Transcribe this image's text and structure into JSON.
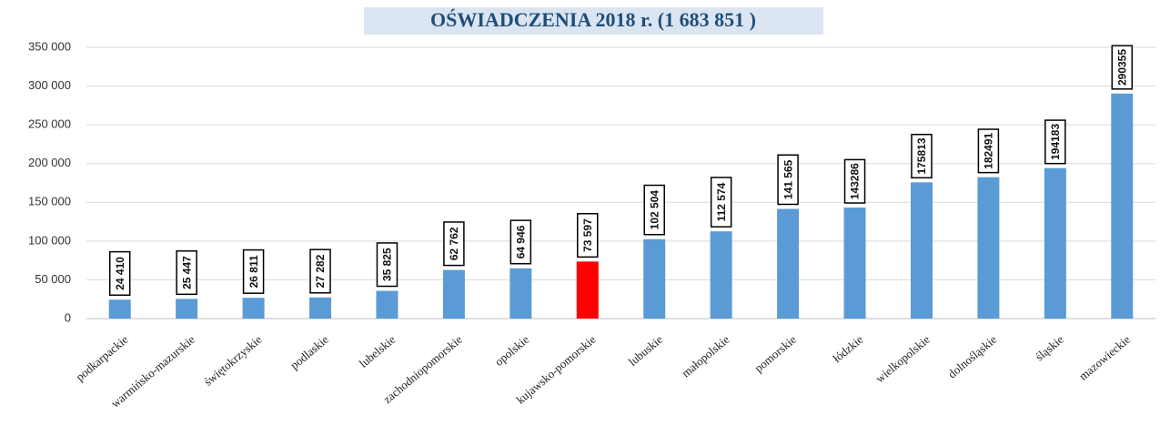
{
  "chart_data": {
    "type": "bar",
    "title": "OŚWIADCZENIA 2018 r. (1 683 851 )",
    "categories": [
      "podkarpackie",
      "warmińsko-mazurskie",
      "świętokrzyskie",
      "podlaskie",
      "lubelskie",
      "zachodniopomorskie",
      "opolskie",
      "kujawsko-pomorskie",
      "lubuskie",
      "małopolskie",
      "pomorskie",
      "łódzkie",
      "wielkopolskie",
      "dolnośląskie",
      "śląskie",
      "mazowieckie"
    ],
    "values": [
      24410,
      25447,
      26811,
      27282,
      35825,
      62762,
      64946,
      73597,
      102504,
      112574,
      141565,
      143286,
      175813,
      182491,
      194183,
      290355
    ],
    "value_labels": [
      "24 410",
      "25 447",
      "26 811",
      "27 282",
      "35 825",
      "62 762",
      "64 946",
      "73 597",
      "102 504",
      "112 574",
      "141 565",
      "143286",
      "175813",
      "182491",
      "194183",
      "290355"
    ],
    "colors": [
      "#5b9bd5",
      "#5b9bd5",
      "#5b9bd5",
      "#5b9bd5",
      "#5b9bd5",
      "#5b9bd5",
      "#5b9bd5",
      "#ff0000",
      "#5b9bd5",
      "#5b9bd5",
      "#5b9bd5",
      "#5b9bd5",
      "#5b9bd5",
      "#5b9bd5",
      "#5b9bd5",
      "#5b9bd5"
    ],
    "ylim": [
      0,
      350000
    ],
    "yticks": [
      0,
      {
        "value": 50000,
        "label": "50 000"
      },
      {
        "value": 100000,
        "label": "100 000"
      },
      {
        "value": 150000,
        "label": "150 000"
      },
      {
        "value": 200000,
        "label": "200 000"
      },
      {
        "value": 250000,
        "label": "250 000"
      },
      {
        "value": 300000,
        "label": "300 000"
      },
      {
        "value": 350000,
        "label": "350 000"
      }
    ],
    "grid": true
  }
}
